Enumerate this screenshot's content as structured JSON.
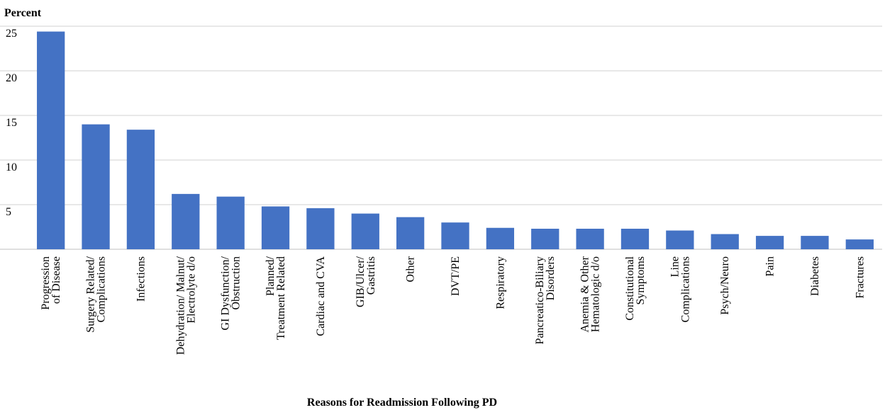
{
  "chart_data": {
    "type": "bar",
    "title": "Percent",
    "x_label": "Reasons for Readmission Following PD",
    "categories": [
      "Progression\nof Disease",
      "Surgery Related/\nComplications",
      "Infections",
      "Dehydration/ Malnut/\nElectrolyte  d/o",
      "GI Dysfunction/\nObstruction",
      "Planned/\nTreatment Related",
      "Cardiac and CVA",
      "GIB/Ulcer/\nGastritis",
      "Other",
      "DVT/PE",
      "Respiratory",
      "Pancreatico-Biliary\nDisorders",
      "Anemia & Other\nHematologic d/o",
      "Constitutional\nSymptoms",
      "Line\nComplications",
      "Psych/Neuro",
      "Pain",
      "Diabetes",
      "Fractures"
    ],
    "values": [
      24.4,
      14.0,
      13.4,
      6.2,
      5.9,
      4.8,
      4.6,
      4.0,
      3.6,
      3.0,
      2.4,
      2.3,
      2.3,
      2.3,
      2.1,
      1.7,
      1.5,
      1.5,
      1.1
    ],
    "color": "#4472c4",
    "ylim": [
      0,
      25
    ],
    "yticks": [
      5,
      10,
      15,
      20,
      25
    ],
    "grid": true
  }
}
